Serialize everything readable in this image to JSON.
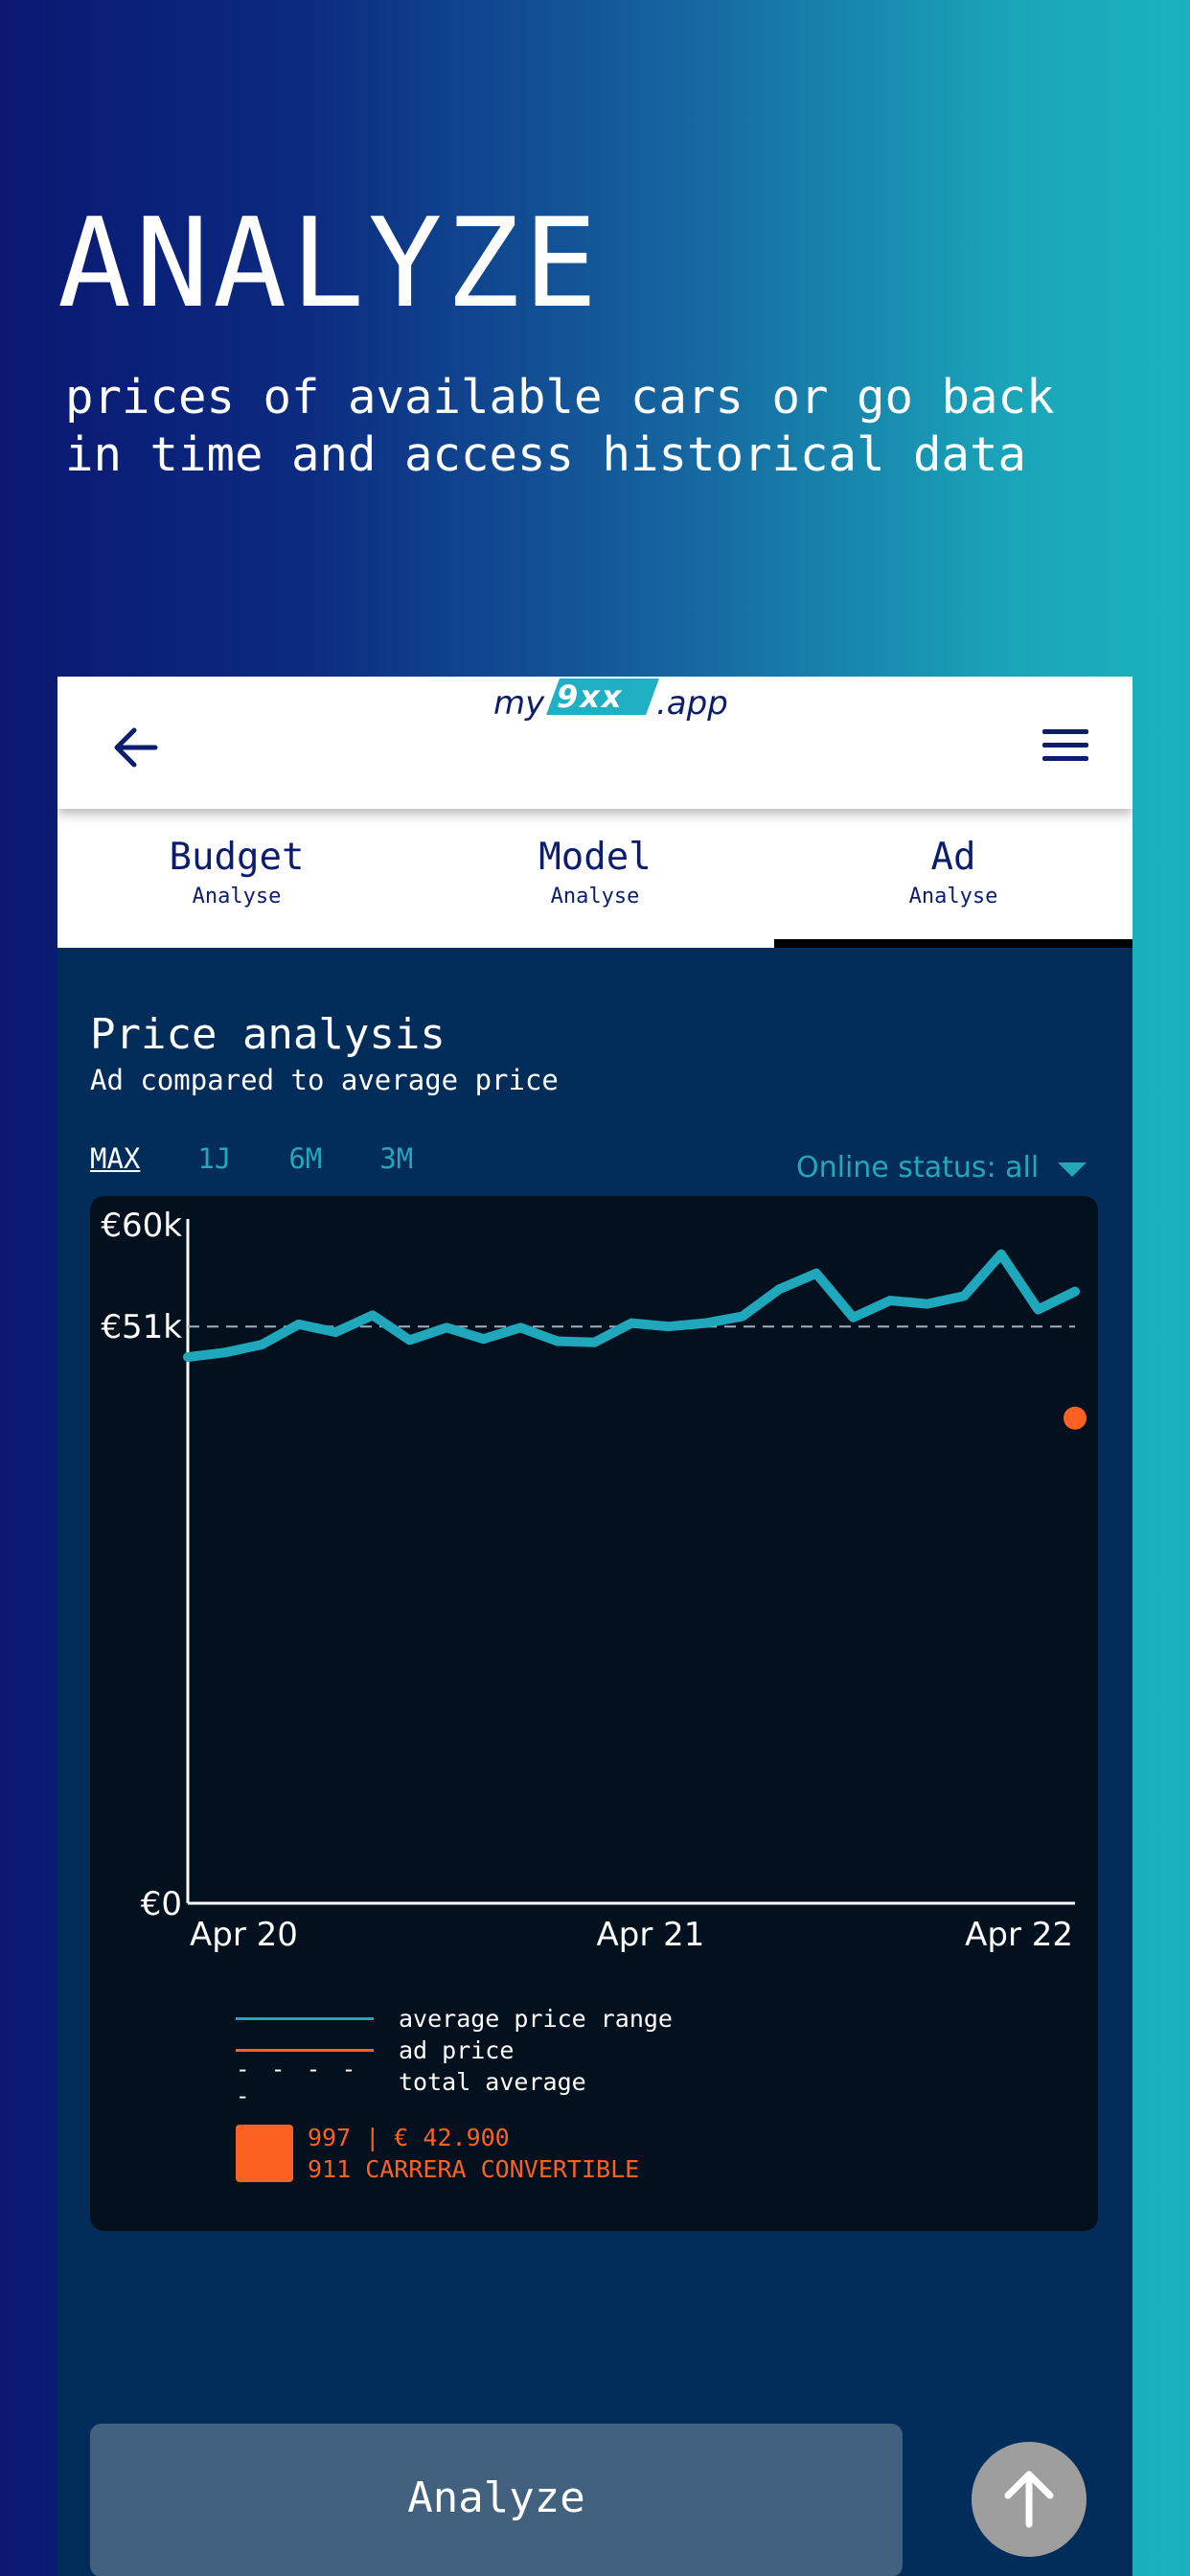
{
  "hero": {
    "title": "ANALYZE",
    "subtitle": "prices of available cars or go back in time and access historical data"
  },
  "appbar": {
    "back_icon": "arrow-left-icon",
    "menu_icon": "hamburger-menu-icon",
    "logo": {
      "prefix": "my",
      "highlight": "9xx",
      "suffix": ".app"
    }
  },
  "tabs": [
    {
      "label": "Budget",
      "sub": "Analyse",
      "active": false
    },
    {
      "label": "Model",
      "sub": "Analyse",
      "active": false
    },
    {
      "label": "Ad",
      "sub": "Analyse",
      "active": true
    }
  ],
  "section": {
    "title": "Price analysis",
    "subtitle": "Ad compared to average price"
  },
  "ranges": [
    "MAX",
    "1J",
    "6M",
    "3M"
  ],
  "active_range": "MAX",
  "status_filter": "Online status: all",
  "chart_data": {
    "type": "line",
    "title": "",
    "xlabel": "",
    "ylabel": "",
    "ylim": [
      0,
      60000
    ],
    "yticks": [
      {
        "value": 60000,
        "label": "€60k"
      },
      {
        "value": 51000,
        "label": "€51k"
      },
      {
        "value": 0,
        "label": "€0"
      }
    ],
    "xticks": [
      "Apr 20",
      "Apr 21",
      "Apr 22"
    ],
    "x_points": 25,
    "series": [
      {
        "name": "average price range",
        "color": "#1fa7bc",
        "values": [
          48300,
          48700,
          49400,
          51200,
          50500,
          52000,
          49800,
          50900,
          49900,
          50900,
          49700,
          49600,
          51300,
          51000,
          51300,
          51900,
          54300,
          55700,
          51800,
          53300,
          53000,
          53700,
          57400,
          52500,
          54100
        ]
      }
    ],
    "total_average": {
      "name": "total average",
      "value": 51000,
      "color": "#9fb1c0"
    },
    "ad_price": {
      "name": "ad price",
      "value": 42900,
      "color": "#fb6222",
      "x_index": 24
    },
    "grid": false,
    "legend_position": "bottom"
  },
  "legend": [
    {
      "text": "average price range",
      "style": "line",
      "color": "#1fa7bc"
    },
    {
      "text": "ad price",
      "style": "line",
      "color": "#fb6222"
    },
    {
      "text": "total average",
      "style": "dash",
      "dash_text": "- - - - -"
    }
  ],
  "car": {
    "line1": "997 | € 42.900",
    "line2": "911 CARRERA CONVERTIBLE",
    "color": "#fb6222"
  },
  "analyze_button": "Analyze",
  "fab_icon": "arrow-up-icon"
}
